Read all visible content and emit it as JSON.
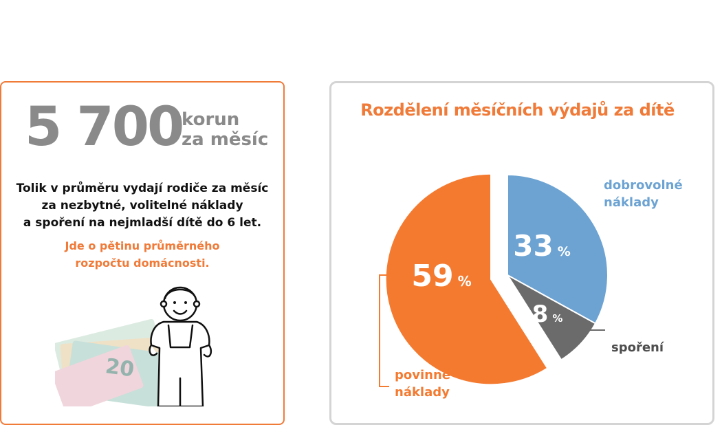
{
  "left_card": {
    "big_number": "5 700",
    "unit_line1": "korun",
    "unit_line2": "za měsíc",
    "description": [
      "Tolik v průměru vydají rodiče za měsíc",
      "za nezbytné, volitelné náklady",
      "a spoření na nejmladší dítě do 6 let."
    ],
    "highlight": [
      "Jde o pětinu průměrného",
      "rozpočtu domácnosti."
    ]
  },
  "chart_data": {
    "type": "pie",
    "title": "Rozdělení měsíčních výdajů za dítě",
    "slices": [
      {
        "name": "dobrovolné náklady",
        "label_lines": [
          "dobrovolné",
          "náklady"
        ],
        "value": 33,
        "value_text": "33",
        "color": "#6ca3d3"
      },
      {
        "name": "spoření",
        "label_lines": [
          "spoření"
        ],
        "value": 8,
        "value_text": "8",
        "color": "#6b6b6b"
      },
      {
        "name": "povinné náklady",
        "label_lines": [
          "povinné",
          "náklady"
        ],
        "value": 59,
        "value_text": "59",
        "color": "#f47a30"
      }
    ],
    "percent_sign": "%"
  },
  "colors": {
    "accent": "#f07a38",
    "gray_text": "#8a8a8a",
    "card_border_right": "#d4d4d4"
  }
}
